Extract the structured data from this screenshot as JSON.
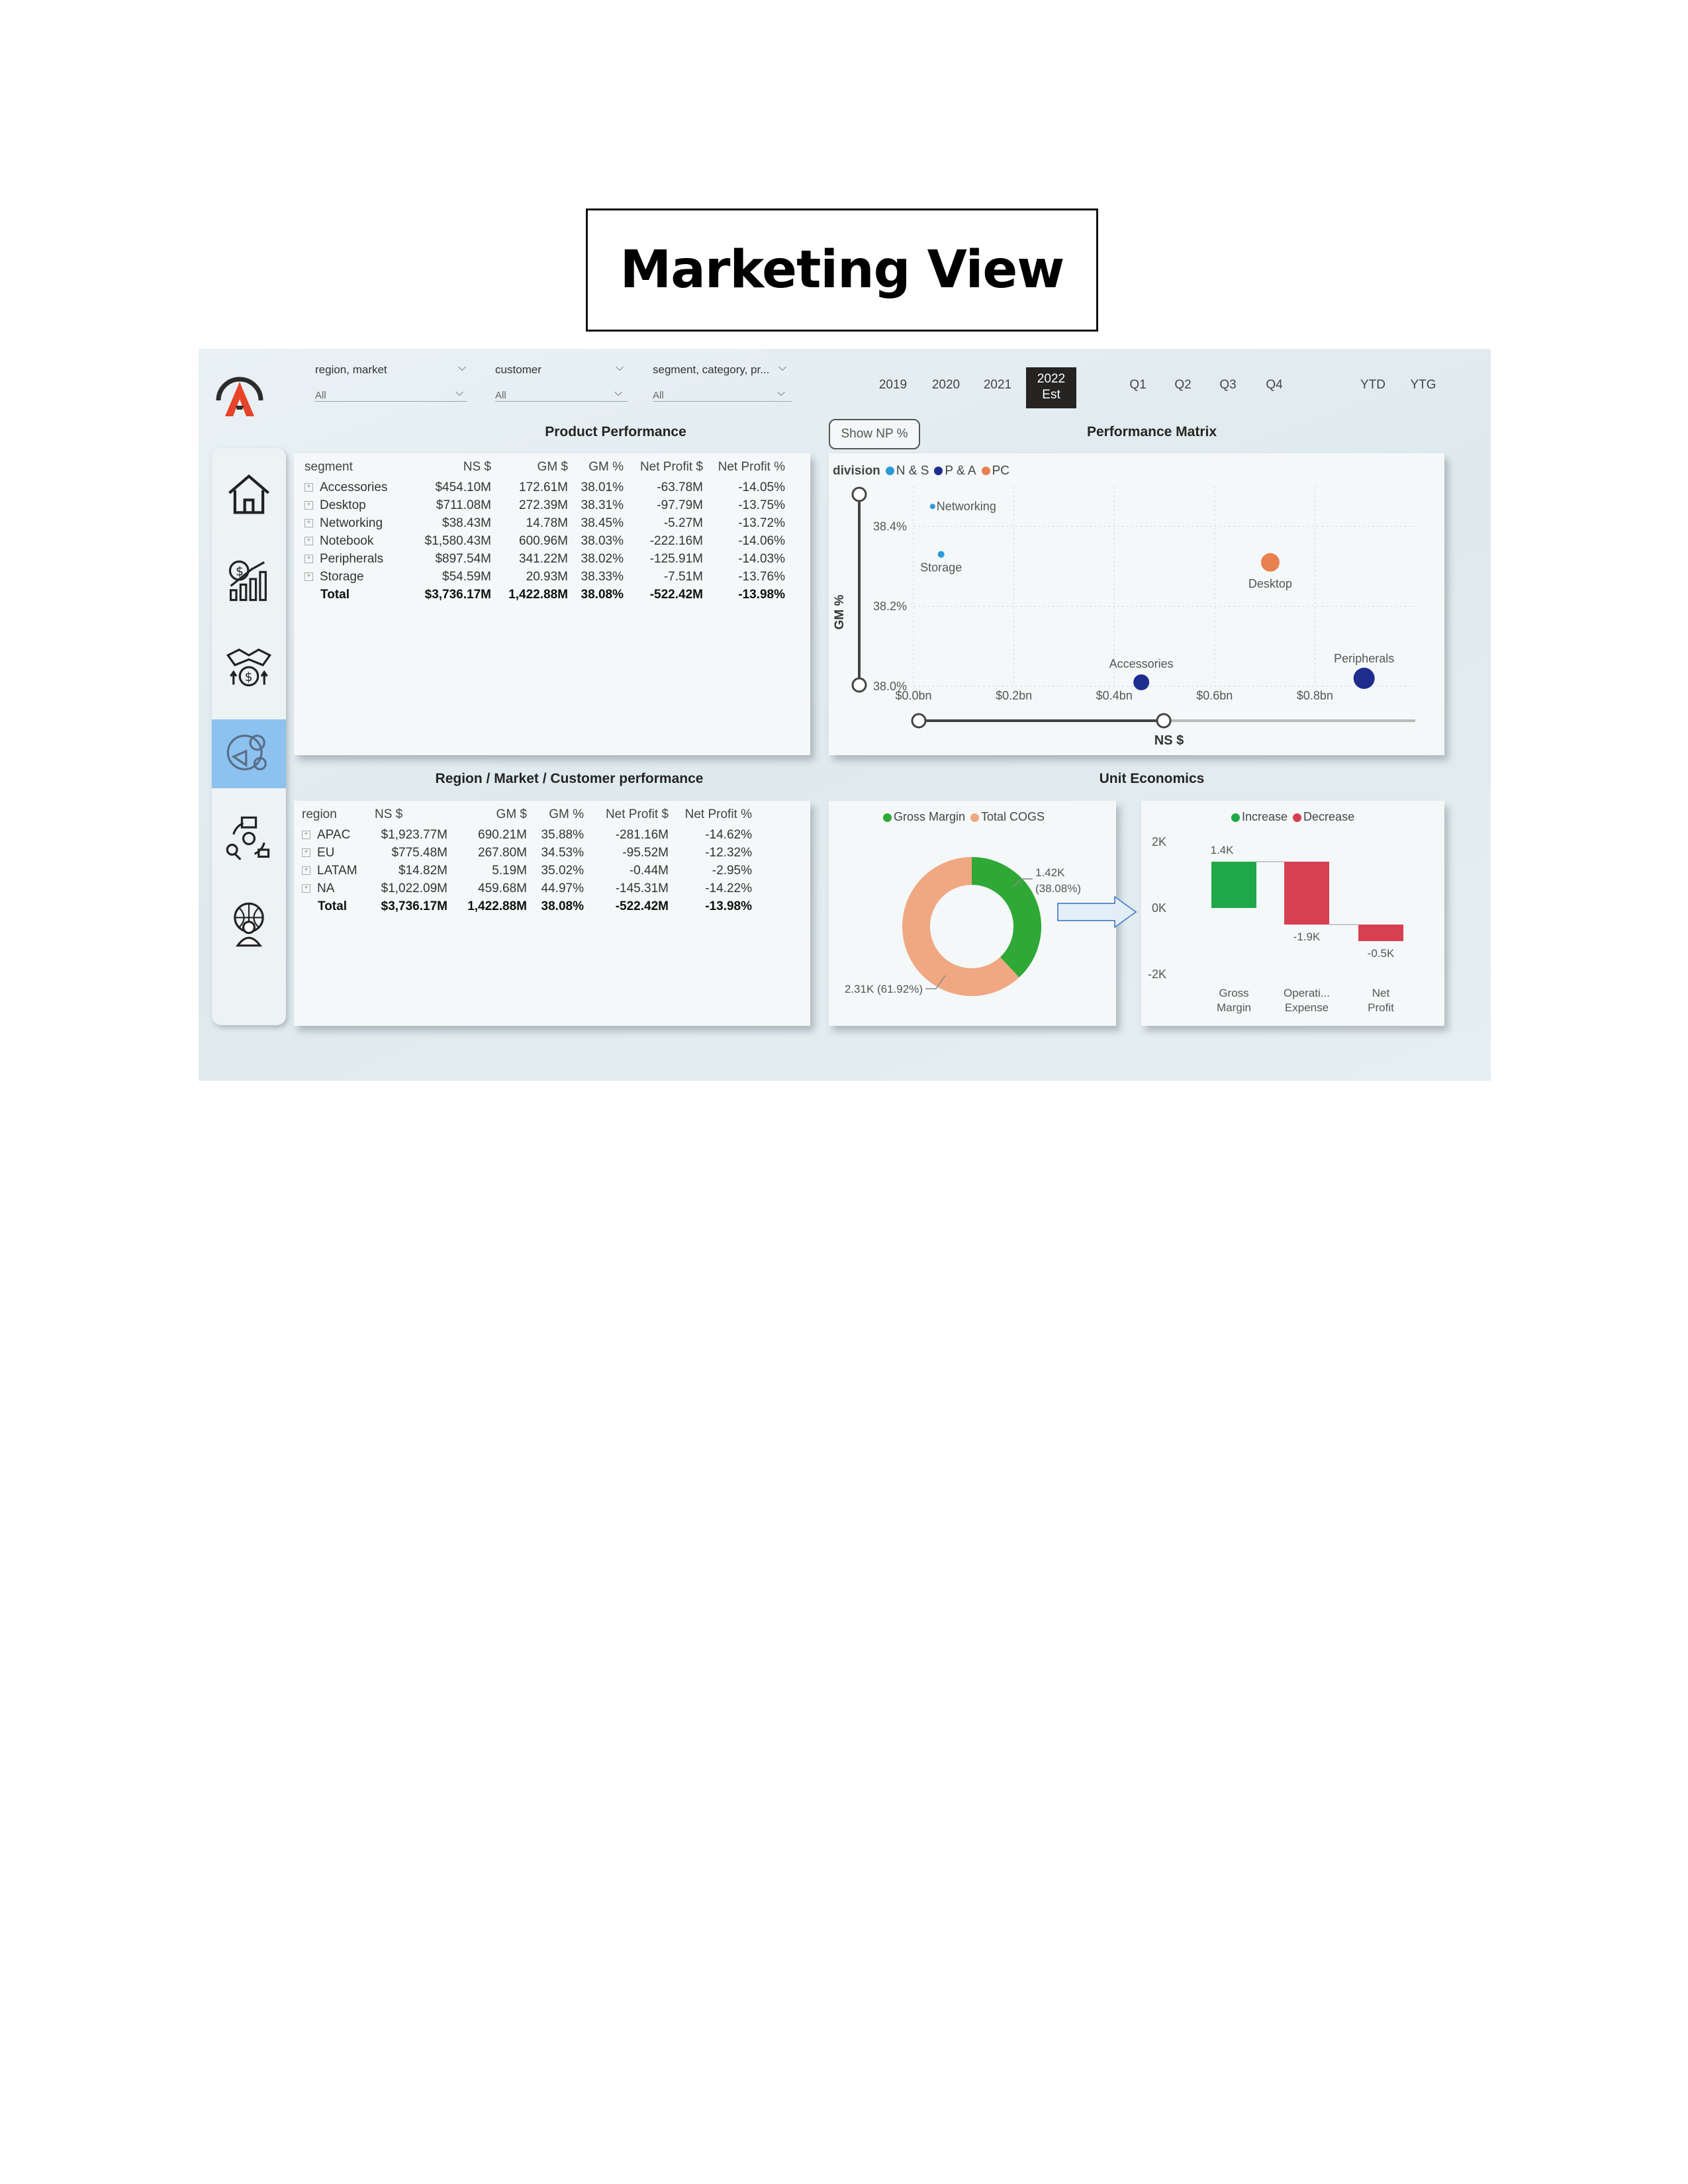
{
  "page": {
    "title": "Marketing View"
  },
  "filters": [
    {
      "label": "region, market",
      "value": "All"
    },
    {
      "label": "customer",
      "value": "All"
    },
    {
      "label": "segment, category, pr...",
      "value": "All"
    }
  ],
  "years": [
    {
      "label": "2019",
      "sub": ""
    },
    {
      "label": "2020",
      "sub": ""
    },
    {
      "label": "2021",
      "sub": ""
    },
    {
      "label": "2022",
      "sub": "Est"
    }
  ],
  "quarters": [
    "Q1",
    "Q2",
    "Q3",
    "Q4"
  ],
  "periods": [
    "YTD",
    "YTG"
  ],
  "nav": {
    "items": [
      "home-icon",
      "growth-chart-icon",
      "handshake-money-icon",
      "marketing-icon",
      "supply-chain-icon",
      "global-executive-icon"
    ],
    "active_index": 3
  },
  "product_performance": {
    "title": "Product Performance",
    "columns": [
      "segment",
      "NS $",
      "GM $",
      "GM %",
      "Net Profit $",
      "Net Profit %"
    ],
    "rows": [
      [
        "Accessories",
        "$454.10M",
        "172.61M",
        "38.01%",
        "-63.78M",
        "-14.05%"
      ],
      [
        "Desktop",
        "$711.08M",
        "272.39M",
        "38.31%",
        "-97.79M",
        "-13.75%"
      ],
      [
        "Networking",
        "$38.43M",
        "14.78M",
        "38.45%",
        "-5.27M",
        "-13.72%"
      ],
      [
        "Notebook",
        "$1,580.43M",
        "600.96M",
        "38.03%",
        "-222.16M",
        "-14.06%"
      ],
      [
        "Peripherals",
        "$897.54M",
        "341.22M",
        "38.02%",
        "-125.91M",
        "-14.03%"
      ],
      [
        "Storage",
        "$54.59M",
        "20.93M",
        "38.33%",
        "-7.51M",
        "-13.76%"
      ]
    ],
    "total": [
      "Total",
      "$3,736.17M",
      "1,422.88M",
      "38.08%",
      "-522.42M",
      "-13.98%"
    ]
  },
  "show_np_button": "Show NP %",
  "region_performance": {
    "title": "Region / Market / Customer performance",
    "columns": [
      "region",
      "NS $",
      "GM $",
      "GM %",
      "Net Profit $",
      "Net Profit %"
    ],
    "rows": [
      [
        "APAC",
        "$1,923.77M",
        "690.21M",
        "35.88%",
        "-281.16M",
        "-14.62%"
      ],
      [
        "EU",
        "$775.48M",
        "267.80M",
        "34.53%",
        "-95.52M",
        "-12.32%"
      ],
      [
        "LATAM",
        "$14.82M",
        "5.19M",
        "35.02%",
        "-0.44M",
        "-2.95%"
      ],
      [
        "NA",
        "$1,022.09M",
        "459.68M",
        "44.97%",
        "-145.31M",
        "-14.22%"
      ]
    ],
    "total": [
      "Total",
      "$3,736.17M",
      "1,422.88M",
      "38.08%",
      "-522.42M",
      "-13.98%"
    ]
  },
  "unit_economics_title": "Unit Economics",
  "chart_data": [
    {
      "type": "scatter",
      "title": "Performance Matrix",
      "xlabel": "NS $",
      "ylabel": "GM %",
      "legend_title": "division",
      "legend_position": "top-left",
      "series": [
        {
          "name": "N & S",
          "color": "#2b9ad8"
        },
        {
          "name": "P & A",
          "color": "#1f2d8f"
        },
        {
          "name": "PC",
          "color": "#e8804f"
        }
      ],
      "points": [
        {
          "label": "Networking",
          "x": 0.038,
          "y": 38.45,
          "series": "N & S"
        },
        {
          "label": "Storage",
          "x": 0.055,
          "y": 38.33,
          "series": "N & S"
        },
        {
          "label": "Desktop",
          "x": 0.711,
          "y": 38.31,
          "series": "PC"
        },
        {
          "label": "Accessories",
          "x": 0.454,
          "y": 38.01,
          "series": "P & A"
        },
        {
          "label": "Peripherals",
          "x": 0.898,
          "y": 38.02,
          "series": "P & A"
        }
      ],
      "x_ticks": [
        "$0.0bn",
        "$0.2bn",
        "$0.4bn",
        "$0.6bn",
        "$0.8bn"
      ],
      "y_ticks": [
        "38.0%",
        "38.2%",
        "38.4%"
      ],
      "xlim": [
        0,
        1.0
      ],
      "ylim": [
        38.0,
        38.5
      ]
    },
    {
      "type": "pie",
      "legend_position": "top",
      "slices": [
        {
          "name": "Gross Margin",
          "value": 1.42,
          "label": "1.42K\n(38.08%)",
          "color": "#2fa836"
        },
        {
          "name": "Total COGS",
          "value": 2.31,
          "label": "2.31K (61.92%)",
          "color": "#f0a882"
        }
      ]
    },
    {
      "type": "bar",
      "subtype": "waterfall",
      "legend": [
        {
          "name": "Increase",
          "color": "#1fa84a"
        },
        {
          "name": "Decrease",
          "color": "#d64050"
        }
      ],
      "categories": [
        "Gross\nMargin",
        "Operati...\nExpense",
        "Net\nProfit"
      ],
      "values": [
        1.4,
        -1.9,
        -0.5
      ],
      "value_labels": [
        "1.4K",
        "-1.9K",
        "-0.5K"
      ],
      "y_ticks": [
        "2K",
        "0K",
        "-2K"
      ],
      "ylim": [
        -2,
        2
      ]
    }
  ]
}
